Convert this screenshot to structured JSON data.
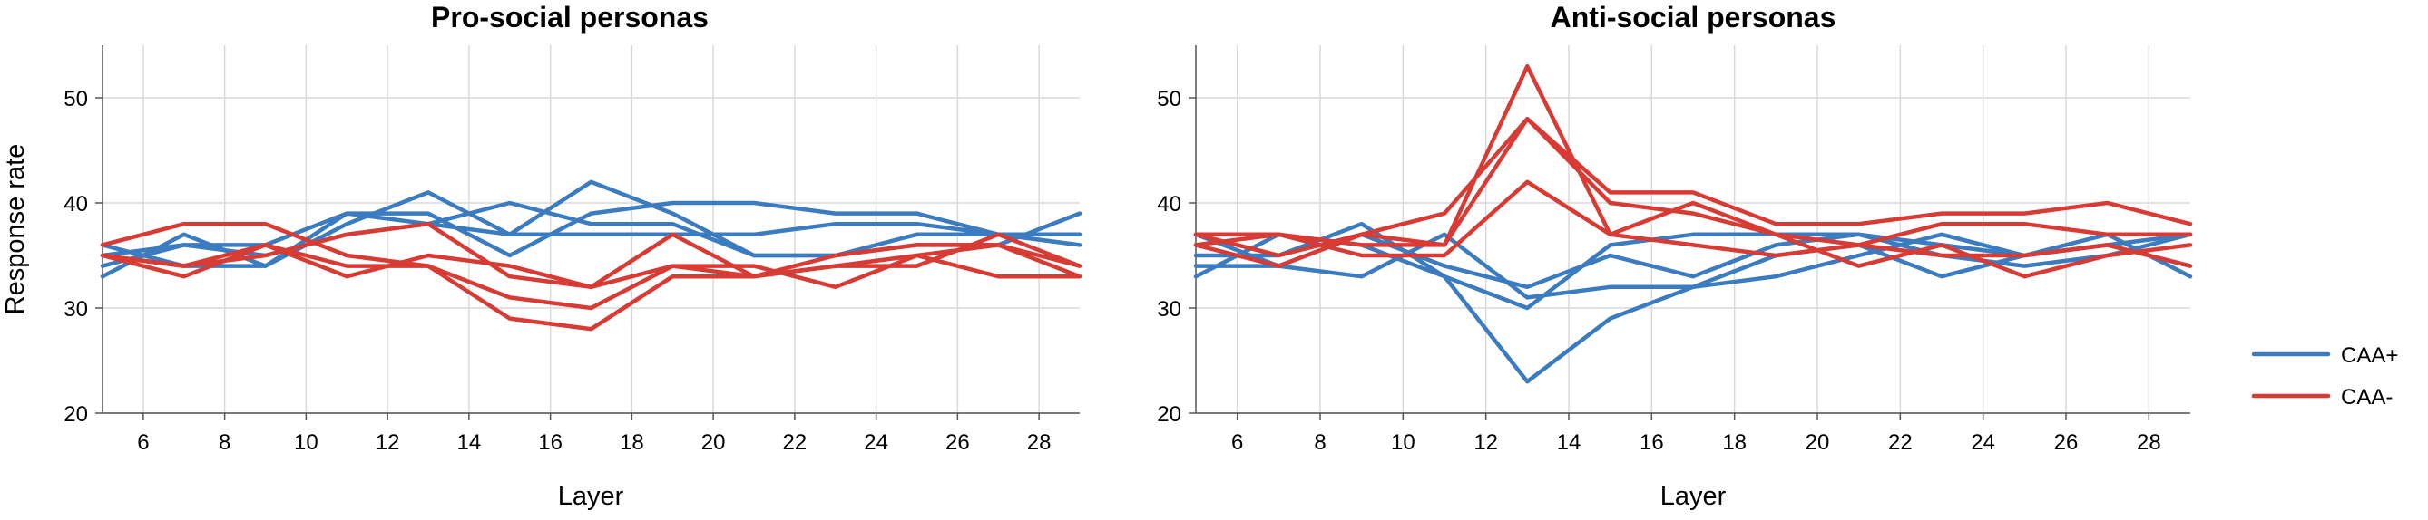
{
  "legend": {
    "items": [
      {
        "name": "CAA+",
        "color": "#3b7bbf"
      },
      {
        "name": "CAA-",
        "color": "#d83a34"
      }
    ]
  },
  "colors": {
    "caa_plus": "#3b7bbf",
    "caa_minus": "#d83a34"
  },
  "chart_data": [
    {
      "type": "line",
      "title": "Pro-social personas",
      "xlabel": "Layer",
      "ylabel": "Response rate",
      "xlim": [
        5,
        29
      ],
      "ylim": [
        20,
        55
      ],
      "xticks": [
        6,
        8,
        10,
        12,
        14,
        16,
        18,
        20,
        22,
        24,
        26,
        28
      ],
      "yticks": [
        20,
        30,
        40,
        50
      ],
      "grid": true,
      "x": [
        5,
        7,
        9,
        11,
        13,
        15,
        17,
        19,
        21,
        23,
        25,
        27,
        29
      ],
      "series": [
        {
          "group": "CAA+",
          "values": [
            33,
            37,
            34,
            38,
            41,
            37,
            42,
            39,
            35,
            35,
            37,
            37,
            37
          ]
        },
        {
          "group": "CAA+",
          "values": [
            35,
            36,
            36,
            39,
            39,
            35,
            39,
            40,
            40,
            39,
            39,
            37,
            36
          ]
        },
        {
          "group": "CAA+",
          "values": [
            34,
            36,
            35,
            37,
            38,
            40,
            38,
            38,
            35,
            35,
            36,
            36,
            39
          ]
        },
        {
          "group": "CAA+",
          "values": [
            36,
            34,
            34,
            39,
            38,
            37,
            37,
            37,
            37,
            38,
            38,
            37,
            37
          ]
        },
        {
          "group": "CAA-",
          "values": [
            36,
            38,
            38,
            35,
            34,
            31,
            30,
            34,
            34,
            32,
            35,
            36,
            33
          ]
        },
        {
          "group": "CAA-",
          "values": [
            35,
            33,
            36,
            33,
            35,
            34,
            32,
            34,
            33,
            35,
            36,
            36,
            34
          ]
        },
        {
          "group": "CAA-",
          "values": [
            35,
            34,
            36,
            34,
            34,
            29,
            28,
            33,
            33,
            34,
            35,
            33,
            33
          ]
        },
        {
          "group": "CAA-",
          "values": [
            35,
            34,
            35,
            37,
            38,
            33,
            32,
            37,
            33,
            34,
            34,
            37,
            34
          ]
        }
      ]
    },
    {
      "type": "line",
      "title": "Anti-social personas",
      "xlabel": "Layer",
      "ylabel": "",
      "xlim": [
        5,
        29
      ],
      "ylim": [
        20,
        55
      ],
      "xticks": [
        6,
        8,
        10,
        12,
        14,
        16,
        18,
        20,
        22,
        24,
        26,
        28
      ],
      "yticks": [
        20,
        30,
        40,
        50
      ],
      "grid": true,
      "x": [
        5,
        7,
        9,
        11,
        13,
        15,
        17,
        19,
        21,
        23,
        25,
        27,
        29
      ],
      "series": [
        {
          "group": "CAA+",
          "values": [
            33,
            37,
            36,
            33,
            23,
            29,
            32,
            33,
            35,
            37,
            35,
            36,
            34
          ]
        },
        {
          "group": "CAA+",
          "values": [
            35,
            35,
            38,
            33,
            30,
            36,
            37,
            37,
            37,
            35,
            34,
            35,
            37
          ]
        },
        {
          "group": "CAA+",
          "values": [
            34,
            34,
            33,
            37,
            31,
            32,
            32,
            35,
            36,
            33,
            35,
            36,
            37
          ]
        },
        {
          "group": "CAA+",
          "values": [
            37,
            34,
            37,
            34,
            32,
            35,
            33,
            36,
            37,
            36,
            35,
            37,
            33
          ]
        },
        {
          "group": "CAA-",
          "values": [
            36,
            37,
            36,
            36,
            53,
            37,
            40,
            37,
            36,
            35,
            35,
            36,
            34
          ]
        },
        {
          "group": "CAA-",
          "values": [
            37,
            35,
            37,
            36,
            48,
            40,
            39,
            37,
            34,
            36,
            33,
            35,
            36
          ]
        },
        {
          "group": "CAA-",
          "values": [
            36,
            34,
            37,
            39,
            48,
            41,
            41,
            38,
            38,
            39,
            39,
            40,
            38
          ]
        },
        {
          "group": "CAA-",
          "values": [
            37,
            37,
            35,
            35,
            42,
            37,
            36,
            35,
            36,
            38,
            38,
            37,
            37
          ]
        }
      ]
    }
  ]
}
